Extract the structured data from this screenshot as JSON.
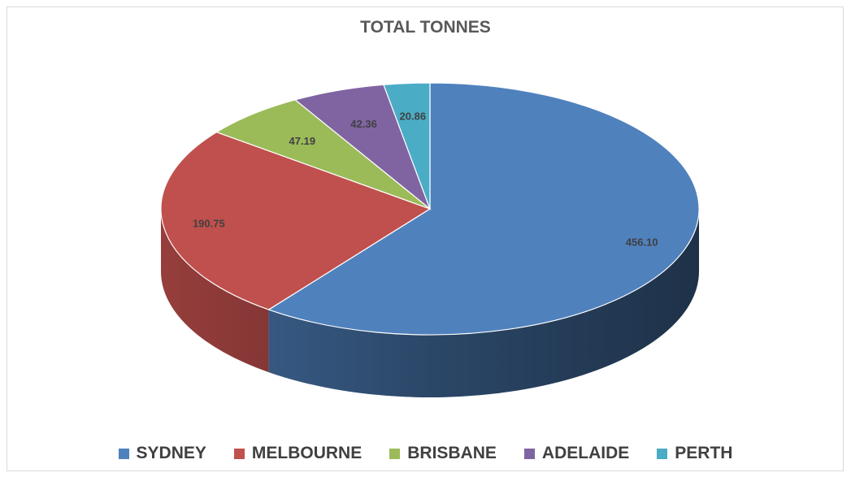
{
  "chart_data": {
    "type": "pie",
    "title": "TOTAL TONNES",
    "style": "3d",
    "legend_position": "bottom",
    "categories": [
      "SYDNEY",
      "MELBOURNE",
      "BRISBANE",
      "ADELAIDE",
      "PERTH"
    ],
    "values": [
      456.1,
      190.75,
      47.19,
      42.36,
      20.86
    ],
    "value_labels": [
      "456.10",
      "190.75",
      "47.19",
      "42.36",
      "20.86"
    ],
    "colors": [
      "#4f81bd",
      "#c0504d",
      "#9bbb59",
      "#8064a2",
      "#4bacc6"
    ]
  }
}
